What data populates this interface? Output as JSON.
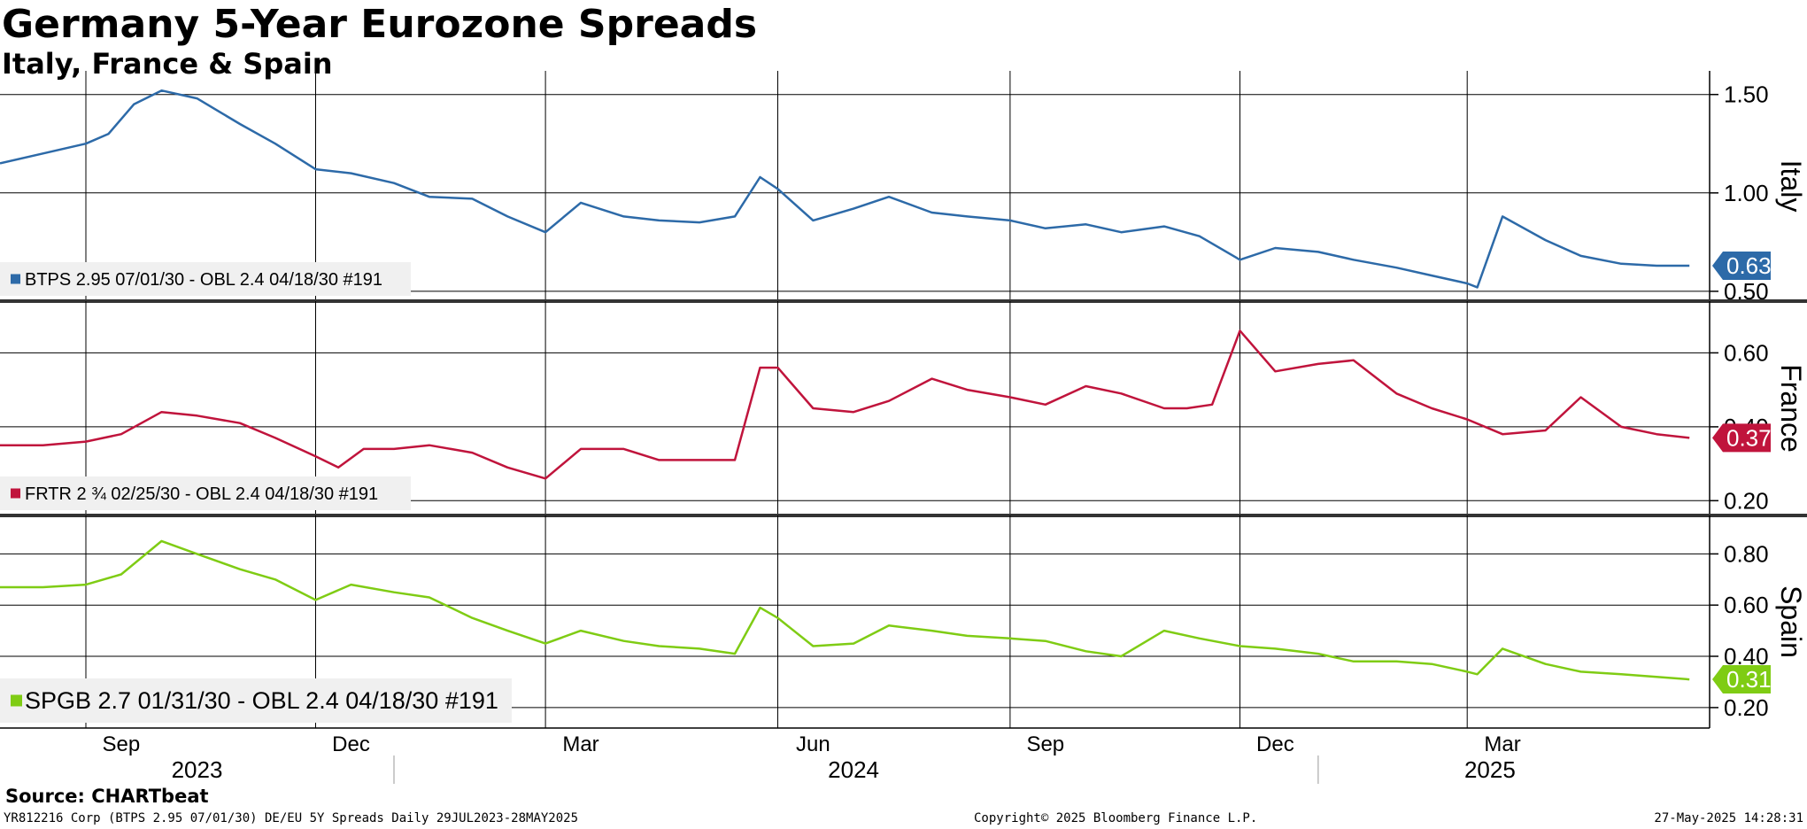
{
  "title": "Germany 5-Year Eurozone Spreads",
  "subtitle": "Italy, France & Spain",
  "source": "Source: CHARTbeat",
  "footer": {
    "left": "YR812216 Corp (BTPS 2.95 07/01/30) DE/EU 5Y Spreads  Daily 29JUL2023-28MAY2025",
    "center": "Copyright© 2025 Bloomberg Finance L.P.",
    "right": "27-May-2025 14:28:31"
  },
  "chart_data": [
    {
      "type": "line",
      "panel_label": "Italy",
      "legend": "BTPS 2.95 07/01/30 - OBL 2.4 04/18/30 #191",
      "color": "#2d6aa8",
      "last_value": "0.63",
      "ylim": [
        0.45,
        1.62
      ],
      "yticks": [
        "0.50",
        "1.00",
        "1.50"
      ],
      "series": [
        {
          "x": [
            "2023-07-29",
            "2023-08-15",
            "2023-09-01",
            "2023-09-10",
            "2023-09-20",
            "2023-10-01",
            "2023-10-15",
            "2023-11-01",
            "2023-11-15",
            "2023-12-01",
            "2023-12-15",
            "2024-01-01",
            "2024-01-15",
            "2024-02-01",
            "2024-02-15",
            "2024-03-01",
            "2024-03-15",
            "2024-04-01",
            "2024-04-15",
            "2024-05-01",
            "2024-05-15",
            "2024-05-25",
            "2024-06-01",
            "2024-06-15",
            "2024-07-01",
            "2024-07-15",
            "2024-08-01",
            "2024-08-15",
            "2024-09-01",
            "2024-09-15",
            "2024-10-01",
            "2024-10-15",
            "2024-11-01",
            "2024-11-15",
            "2024-12-01",
            "2024-12-15",
            "2025-01-01",
            "2025-01-15",
            "2025-02-01",
            "2025-02-15",
            "2025-03-01",
            "2025-03-05",
            "2025-03-15",
            "2025-04-01",
            "2025-04-15",
            "2025-05-01",
            "2025-05-15",
            "2025-05-28"
          ],
          "y": [
            1.15,
            1.2,
            1.25,
            1.3,
            1.45,
            1.52,
            1.48,
            1.35,
            1.25,
            1.12,
            1.1,
            1.05,
            0.98,
            0.97,
            0.88,
            0.8,
            0.95,
            0.88,
            0.86,
            0.85,
            0.88,
            1.08,
            1.02,
            0.86,
            0.92,
            0.98,
            0.9,
            0.88,
            0.86,
            0.82,
            0.84,
            0.8,
            0.83,
            0.78,
            0.66,
            0.72,
            0.7,
            0.66,
            0.62,
            0.58,
            0.54,
            0.52,
            0.88,
            0.76,
            0.68,
            0.64,
            0.63,
            0.63
          ]
        }
      ]
    },
    {
      "type": "line",
      "panel_label": "France",
      "legend": "FRTR 2 ¾ 02/25/30 - OBL 2.4 04/18/30 #191",
      "color": "#c0143c",
      "last_value": "0.37",
      "ylim": [
        0.16,
        0.74
      ],
      "yticks": [
        "0.20",
        "0.40",
        "0.60"
      ],
      "series": [
        {
          "x": [
            "2023-07-29",
            "2023-08-15",
            "2023-09-01",
            "2023-09-15",
            "2023-10-01",
            "2023-10-15",
            "2023-11-01",
            "2023-11-15",
            "2023-12-01",
            "2023-12-10",
            "2023-12-20",
            "2024-01-01",
            "2024-01-15",
            "2024-02-01",
            "2024-02-15",
            "2024-03-01",
            "2024-03-15",
            "2024-04-01",
            "2024-04-15",
            "2024-05-01",
            "2024-05-15",
            "2024-05-25",
            "2024-06-01",
            "2024-06-15",
            "2024-07-01",
            "2024-07-15",
            "2024-08-01",
            "2024-08-15",
            "2024-09-01",
            "2024-09-15",
            "2024-10-01",
            "2024-10-15",
            "2024-11-01",
            "2024-11-10",
            "2024-11-20",
            "2024-12-01",
            "2024-12-15",
            "2025-01-01",
            "2025-01-15",
            "2025-02-01",
            "2025-02-15",
            "2025-03-01",
            "2025-03-15",
            "2025-04-01",
            "2025-04-15",
            "2025-05-01",
            "2025-05-15",
            "2025-05-28"
          ],
          "y": [
            0.35,
            0.35,
            0.36,
            0.38,
            0.44,
            0.43,
            0.41,
            0.37,
            0.32,
            0.29,
            0.34,
            0.34,
            0.35,
            0.33,
            0.29,
            0.26,
            0.34,
            0.34,
            0.31,
            0.31,
            0.31,
            0.56,
            0.56,
            0.45,
            0.44,
            0.47,
            0.53,
            0.5,
            0.48,
            0.46,
            0.51,
            0.49,
            0.45,
            0.45,
            0.46,
            0.66,
            0.55,
            0.57,
            0.58,
            0.49,
            0.45,
            0.42,
            0.38,
            0.39,
            0.48,
            0.4,
            0.38,
            0.37
          ]
        }
      ]
    },
    {
      "type": "line",
      "panel_label": "Spain",
      "legend": "SPGB 2.7 01/31/30 - OBL 2.4 04/18/30 #191",
      "color": "#7fcc14",
      "last_value": "0.31",
      "ylim": [
        0.12,
        0.95
      ],
      "yticks": [
        "0.20",
        "0.40",
        "0.60",
        "0.80"
      ],
      "series": [
        {
          "x": [
            "2023-07-29",
            "2023-08-15",
            "2023-09-01",
            "2023-09-15",
            "2023-10-01",
            "2023-10-15",
            "2023-11-01",
            "2023-11-15",
            "2023-12-01",
            "2023-12-15",
            "2024-01-01",
            "2024-01-15",
            "2024-02-01",
            "2024-02-15",
            "2024-03-01",
            "2024-03-15",
            "2024-04-01",
            "2024-04-15",
            "2024-05-01",
            "2024-05-15",
            "2024-05-25",
            "2024-06-01",
            "2024-06-15",
            "2024-07-01",
            "2024-07-15",
            "2024-08-01",
            "2024-08-15",
            "2024-09-01",
            "2024-09-15",
            "2024-10-01",
            "2024-10-15",
            "2024-11-01",
            "2024-11-15",
            "2024-12-01",
            "2024-12-15",
            "2025-01-01",
            "2025-01-15",
            "2025-02-01",
            "2025-02-15",
            "2025-03-01",
            "2025-03-05",
            "2025-03-15",
            "2025-04-01",
            "2025-04-15",
            "2025-05-01",
            "2025-05-15",
            "2025-05-28"
          ],
          "y": [
            0.67,
            0.67,
            0.68,
            0.72,
            0.85,
            0.8,
            0.74,
            0.7,
            0.62,
            0.68,
            0.65,
            0.63,
            0.55,
            0.5,
            0.45,
            0.5,
            0.46,
            0.44,
            0.43,
            0.41,
            0.59,
            0.55,
            0.44,
            0.45,
            0.52,
            0.5,
            0.48,
            0.47,
            0.46,
            0.42,
            0.4,
            0.5,
            0.47,
            0.44,
            0.43,
            0.41,
            0.38,
            0.38,
            0.37,
            0.34,
            0.33,
            0.43,
            0.37,
            0.34,
            0.33,
            0.32,
            0.31
          ]
        }
      ]
    }
  ],
  "x_axis": {
    "ticks": [
      {
        "label": "Sep",
        "date": "2023-09-15"
      },
      {
        "label": "Dec",
        "date": "2023-12-15"
      },
      {
        "label": "Mar",
        "date": "2024-03-15"
      },
      {
        "label": "Jun",
        "date": "2024-06-15"
      },
      {
        "label": "Sep",
        "date": "2024-09-15"
      },
      {
        "label": "Dec",
        "date": "2024-12-15"
      },
      {
        "label": "Mar",
        "date": "2025-03-15"
      }
    ],
    "years": [
      {
        "label": "2023",
        "date": "2023-10-15"
      },
      {
        "label": "2024",
        "date": "2024-07-01"
      },
      {
        "label": "2025",
        "date": "2025-03-10"
      }
    ],
    "xlim": [
      "2023-07-29",
      "2025-06-05"
    ]
  }
}
